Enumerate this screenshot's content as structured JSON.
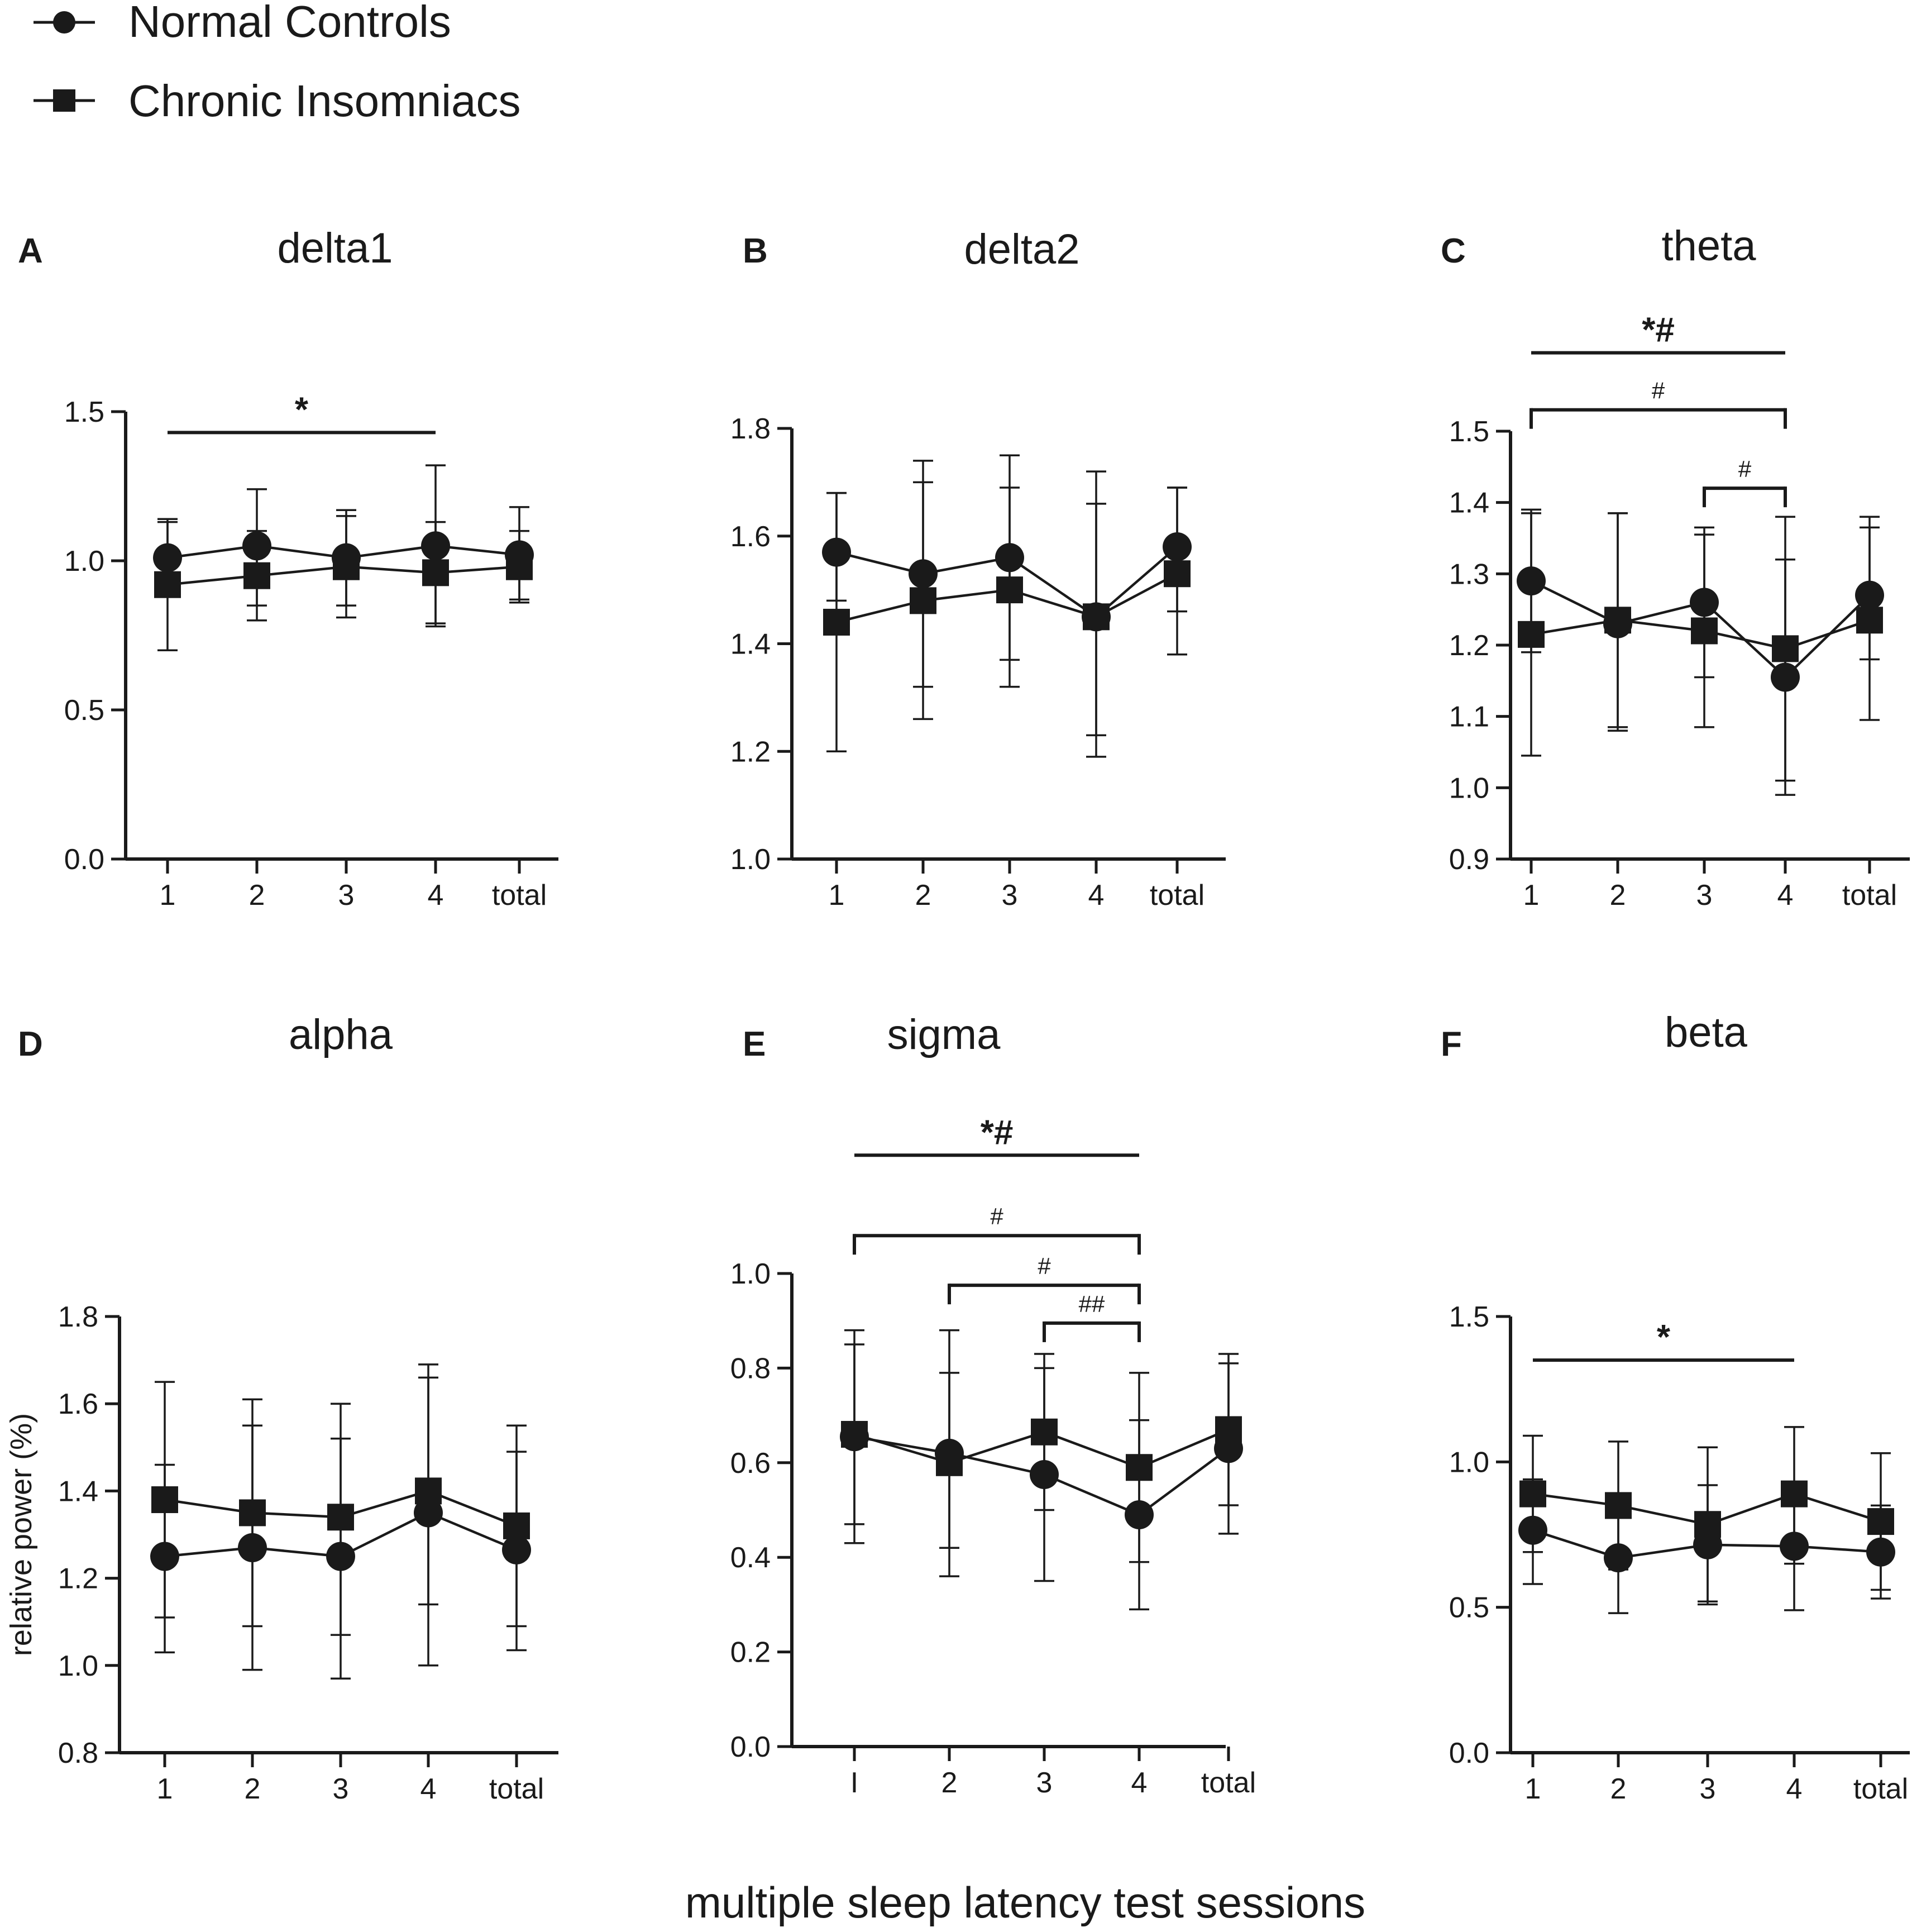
{
  "legend": [
    {
      "label": "Normal Controls",
      "marker": "circle"
    },
    {
      "label": "Chronic Insomniacs",
      "marker": "square"
    }
  ],
  "shared_xlabel": "multiple sleep latency test sessions",
  "colors": {
    "ink": "#1a1a1a",
    "background": "#ffffff"
  },
  "chart_data": [
    {
      "panel": "A",
      "title": "delta1",
      "type": "line",
      "categories": [
        "1",
        "2",
        "3",
        "4",
        "total"
      ],
      "ylim": [
        0.0,
        1.5
      ],
      "yticks": [
        "0.0",
        "0.5",
        "1.0",
        "1.5"
      ],
      "ylabel": "",
      "series": [
        {
          "name": "Normal Controls",
          "marker": "circle",
          "values": [
            1.01,
            1.05,
            1.01,
            1.05,
            1.02
          ],
          "err_low": [
            0.89,
            0.85,
            0.85,
            0.79,
            0.87
          ],
          "err_high": [
            1.13,
            1.24,
            1.17,
            1.32,
            1.18
          ]
        },
        {
          "name": "Chronic Insomniacs",
          "marker": "square",
          "values": [
            0.92,
            0.95,
            0.98,
            0.96,
            0.98
          ],
          "err_low": [
            0.7,
            0.8,
            0.81,
            0.78,
            0.86
          ],
          "err_high": [
            1.14,
            1.1,
            1.15,
            1.13,
            1.1
          ]
        }
      ],
      "annotations": [
        {
          "text": "*",
          "from": 0,
          "to": 3,
          "level": 1.43,
          "bracket": false
        }
      ]
    },
    {
      "panel": "B",
      "title": "delta2",
      "type": "line",
      "categories": [
        "1",
        "2",
        "3",
        "4",
        "total"
      ],
      "ylim": [
        1.0,
        1.8
      ],
      "yticks": [
        "1.0",
        "1.2",
        "1.4",
        "1.6",
        "1.8"
      ],
      "ylabel": "",
      "series": [
        {
          "name": "Normal Controls",
          "marker": "circle",
          "values": [
            1.57,
            1.53,
            1.56,
            1.45,
            1.58
          ],
          "err_low": [
            1.48,
            1.32,
            1.37,
            1.19,
            1.46
          ],
          "err_high": [
            1.68,
            1.74,
            1.75,
            1.72,
            1.69
          ]
        },
        {
          "name": "Chronic Insomniacs",
          "marker": "square",
          "values": [
            1.44,
            1.48,
            1.5,
            1.45,
            1.53
          ],
          "err_low": [
            1.2,
            1.26,
            1.32,
            1.23,
            1.38
          ],
          "err_high": [
            1.68,
            1.7,
            1.69,
            1.66,
            1.69
          ]
        }
      ],
      "annotations": []
    },
    {
      "panel": "C",
      "title": "theta",
      "type": "line",
      "categories": [
        "1",
        "2",
        "3",
        "4",
        "total"
      ],
      "ylim": [
        0.9,
        1.5
      ],
      "yticks": [
        "0.9",
        "1.0",
        "1.1",
        "1.2",
        "1.3",
        "1.4",
        "1.5"
      ],
      "ylabel": "",
      "series": [
        {
          "name": "Normal Controls",
          "marker": "circle",
          "values": [
            1.29,
            1.23,
            1.26,
            1.155,
            1.27
          ],
          "err_low": [
            1.19,
            1.08,
            1.155,
            0.99,
            1.18
          ],
          "err_high": [
            1.39,
            1.385,
            1.365,
            1.32,
            1.365
          ]
        },
        {
          "name": "Chronic Insomniacs",
          "marker": "square",
          "values": [
            1.215,
            1.235,
            1.22,
            1.195,
            1.235
          ],
          "err_low": [
            1.045,
            1.085,
            1.085,
            1.01,
            1.095
          ],
          "err_high": [
            1.385,
            1.385,
            1.355,
            1.38,
            1.38
          ]
        }
      ],
      "annotations": [
        {
          "text": "#",
          "from": 2,
          "to": 3,
          "level": 1.42,
          "bracket": true
        },
        {
          "text": "#",
          "from": 0,
          "to": 3,
          "level": 1.53,
          "bracket": true
        },
        {
          "text": "*#",
          "from": 0,
          "to": 3,
          "level": 1.61,
          "bracket": false
        }
      ]
    },
    {
      "panel": "D",
      "title": "alpha",
      "type": "line",
      "categories": [
        "1",
        "2",
        "3",
        "4",
        "total"
      ],
      "ylim": [
        0.8,
        1.8
      ],
      "yticks": [
        "0.8",
        "1.0",
        "1.2",
        "1.4",
        "1.6",
        "1.8"
      ],
      "ylabel": "relative power (%)",
      "series": [
        {
          "name": "Normal Controls",
          "marker": "circle",
          "values": [
            1.25,
            1.27,
            1.25,
            1.35,
            1.265
          ],
          "err_low": [
            1.03,
            0.99,
            0.97,
            1.0,
            1.035
          ],
          "err_high": [
            1.46,
            1.55,
            1.52,
            1.69,
            1.49
          ]
        },
        {
          "name": "Chronic Insomniacs",
          "marker": "square",
          "values": [
            1.38,
            1.35,
            1.34,
            1.4,
            1.32
          ],
          "err_low": [
            1.11,
            1.09,
            1.07,
            1.14,
            1.09
          ],
          "err_high": [
            1.65,
            1.61,
            1.6,
            1.66,
            1.55
          ]
        }
      ],
      "annotations": []
    },
    {
      "panel": "E",
      "title": "sigma",
      "type": "line",
      "categories": [
        "I",
        "2",
        "3",
        "4",
        "total"
      ],
      "ylim": [
        0.0,
        1.0
      ],
      "yticks": [
        "0.0",
        "0.2",
        "0.4",
        "0.6",
        "0.8",
        "1.0"
      ],
      "ylabel": "",
      "series": [
        {
          "name": "Normal Controls",
          "marker": "circle",
          "values": [
            0.655,
            0.62,
            0.575,
            0.49,
            0.63
          ],
          "err_low": [
            0.43,
            0.36,
            0.35,
            0.29,
            0.45
          ],
          "err_high": [
            0.88,
            0.88,
            0.8,
            0.69,
            0.81
          ]
        },
        {
          "name": "Chronic Insomniacs",
          "marker": "square",
          "values": [
            0.66,
            0.6,
            0.665,
            0.59,
            0.67
          ],
          "err_low": [
            0.47,
            0.42,
            0.5,
            0.39,
            0.51
          ],
          "err_high": [
            0.85,
            0.79,
            0.83,
            0.79,
            0.83
          ]
        }
      ],
      "annotations": [
        {
          "text": "##",
          "from": 2,
          "to": 3,
          "level": 0.895,
          "bracket": true
        },
        {
          "text": "#",
          "from": 1,
          "to": 3,
          "level": 0.975,
          "bracket": true
        },
        {
          "text": "#",
          "from": 0,
          "to": 3,
          "level": 1.08,
          "bracket": true
        },
        {
          "text": "*#",
          "from": 0,
          "to": 3,
          "level": 1.25,
          "bracket": false
        }
      ]
    },
    {
      "panel": "F",
      "title": "beta",
      "type": "line",
      "categories": [
        "1",
        "2",
        "3",
        "4",
        "total"
      ],
      "ylim": [
        0.0,
        1.5
      ],
      "yticks": [
        "0.0",
        "0.5",
        "1.0",
        "1.5"
      ],
      "ylabel": "",
      "series": [
        {
          "name": "Normal Controls",
          "marker": "circle",
          "values": [
            0.765,
            0.67,
            0.715,
            0.71,
            0.69
          ],
          "err_low": [
            0.58,
            0.48,
            0.51,
            0.49,
            0.53
          ],
          "err_high": [
            0.94,
            0.86,
            0.92,
            0.93,
            0.85
          ]
        },
        {
          "name": "Chronic Insomniacs",
          "marker": "square",
          "values": [
            0.89,
            0.85,
            0.785,
            0.89,
            0.795
          ],
          "err_low": [
            0.69,
            0.63,
            0.52,
            0.65,
            0.56
          ],
          "err_high": [
            1.09,
            1.07,
            1.05,
            1.12,
            1.03
          ]
        }
      ],
      "annotations": [
        {
          "text": "*",
          "from": 0,
          "to": 3,
          "level": 1.35,
          "bracket": false
        }
      ]
    }
  ]
}
